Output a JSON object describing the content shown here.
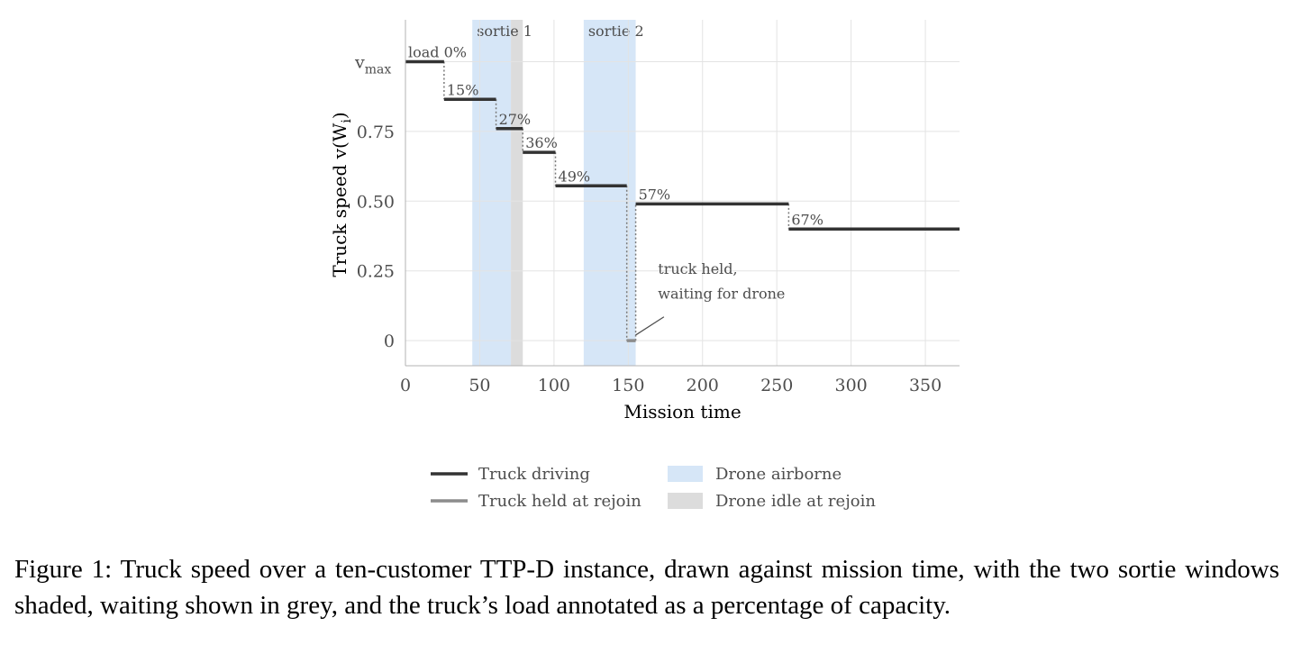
{
  "chart_data": {
    "type": "line",
    "xlabel": "Mission time",
    "ylabel": "Truck speed  v(W",
    "ylabel_sub": "i",
    "ylabel_close": ")",
    "xlim": [
      0,
      373
    ],
    "ylim": [
      -0.09,
      1.15
    ],
    "xticks": [
      0,
      50,
      100,
      150,
      200,
      250,
      300,
      350
    ],
    "xtick_labels": [
      "0",
      "50",
      "100",
      "150",
      "200",
      "250",
      "300",
      "350"
    ],
    "yticks": [
      0,
      0.25,
      0.5,
      0.75,
      1.0
    ],
    "ytick_labels": [
      "0",
      "0.25",
      "0.50",
      "0.75",
      "v"
    ],
    "ytick_vmax_sub": "max",
    "grid": true,
    "sorties": [
      {
        "label": "sortie 1",
        "start": 45,
        "end": 71
      },
      {
        "label": "sortie 2",
        "start": 120,
        "end": 155
      }
    ],
    "idle": [
      {
        "start": 71,
        "end": 79
      }
    ],
    "driving_segments": [
      {
        "x0": 0,
        "x1": 26,
        "y": 1.0,
        "label": "load 0%"
      },
      {
        "x0": 26,
        "x1": 61,
        "y": 0.865,
        "label": "15%"
      },
      {
        "x0": 61,
        "x1": 79,
        "y": 0.76,
        "label": "27%"
      },
      {
        "x0": 79,
        "x1": 101,
        "y": 0.675,
        "label": "36%"
      },
      {
        "x0": 101,
        "x1": 149,
        "y": 0.555,
        "label": "49%"
      },
      {
        "x0": 155,
        "x1": 258,
        "y": 0.49,
        "label": "57%"
      },
      {
        "x0": 258,
        "x1": 373,
        "y": 0.4,
        "label": "67%"
      }
    ],
    "held_segments": [
      {
        "x0": 149,
        "x1": 155,
        "y": 0.0
      }
    ],
    "annotation": {
      "lines": [
        "truck held,",
        "waiting for drone"
      ],
      "text_x": 170,
      "text_y1": 0.24,
      "text_y2": 0.15,
      "arrow_from": [
        174,
        0.085
      ],
      "arrow_to": [
        155,
        0.02
      ]
    },
    "legend": {
      "position": "bottom",
      "items": [
        {
          "label": "Truck driving",
          "kind": "line",
          "color": "#333333"
        },
        {
          "label": "Truck held at rejoin",
          "kind": "line",
          "color": "#8c8c8c"
        },
        {
          "label": "Drone airborne",
          "kind": "box",
          "color": "#d6e6f7"
        },
        {
          "label": "Drone idle at rejoin",
          "kind": "box",
          "color": "#dcdcdc"
        }
      ]
    },
    "colors": {
      "driving": "#333333",
      "held": "#8c8c8c",
      "airborne": "#d6e6f7",
      "idle": "#dcdcdc",
      "grid": "#e3e3e3",
      "connector": "#7a7a7a"
    }
  },
  "caption": "Figure 1: Truck speed over a ten-customer TTP-D instance, drawn against mission time, with the two sortie windows shaded, waiting shown in grey, and the truck’s load annotated as a percentage of capacity."
}
